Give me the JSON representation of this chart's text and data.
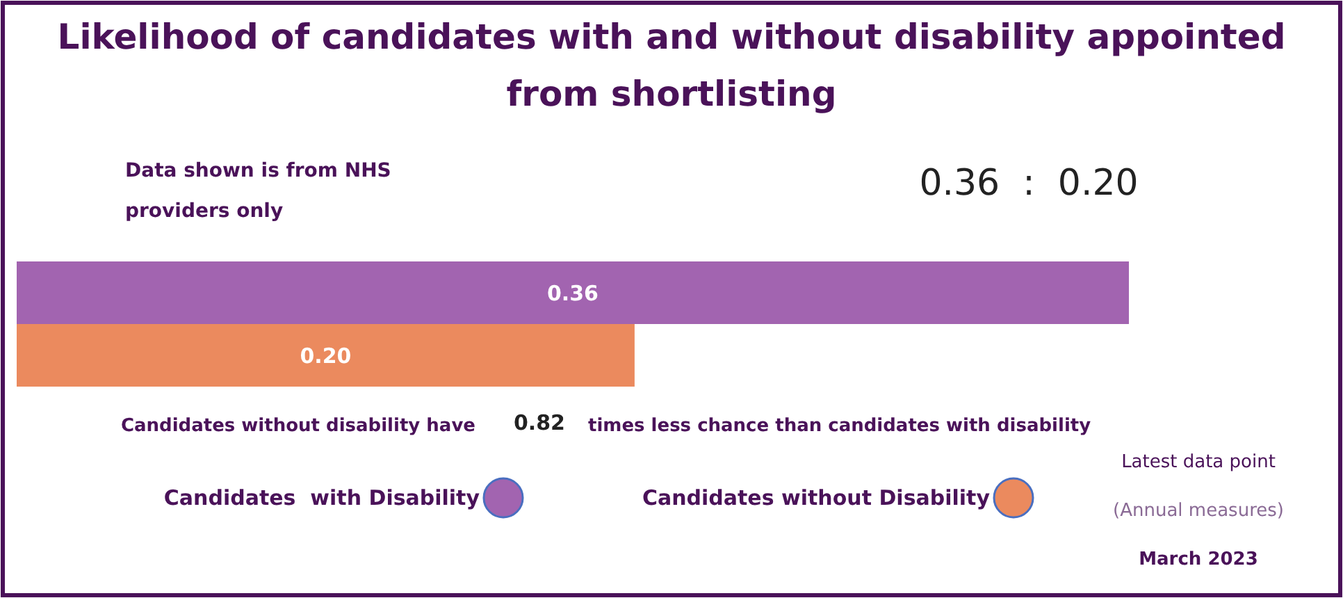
{
  "chart_data": {
    "type": "bar",
    "orientation": "horizontal",
    "title": "Likelihood of candidates with and without disability appointed from shortlisting",
    "categories": [
      null
    ],
    "series": [
      {
        "name": "Candidates  with Disability",
        "color": "#a264b0",
        "values": [
          0.36
        ],
        "value_labels": [
          "0.36"
        ]
      },
      {
        "name": "Candidates without Disability",
        "color": "#eb8a5e",
        "values": [
          0.2
        ],
        "value_labels": [
          "0.20"
        ]
      }
    ],
    "legend": "bottom",
    "grid": false,
    "annotations": [
      "Data shown is from NHS providers only",
      "0.36  :  0.20",
      "Candidates without disability have",
      "0.82",
      "times less chance than candidates with disability",
      "Latest data point",
      "(Annual measures)",
      "March 2023"
    ]
  }
}
